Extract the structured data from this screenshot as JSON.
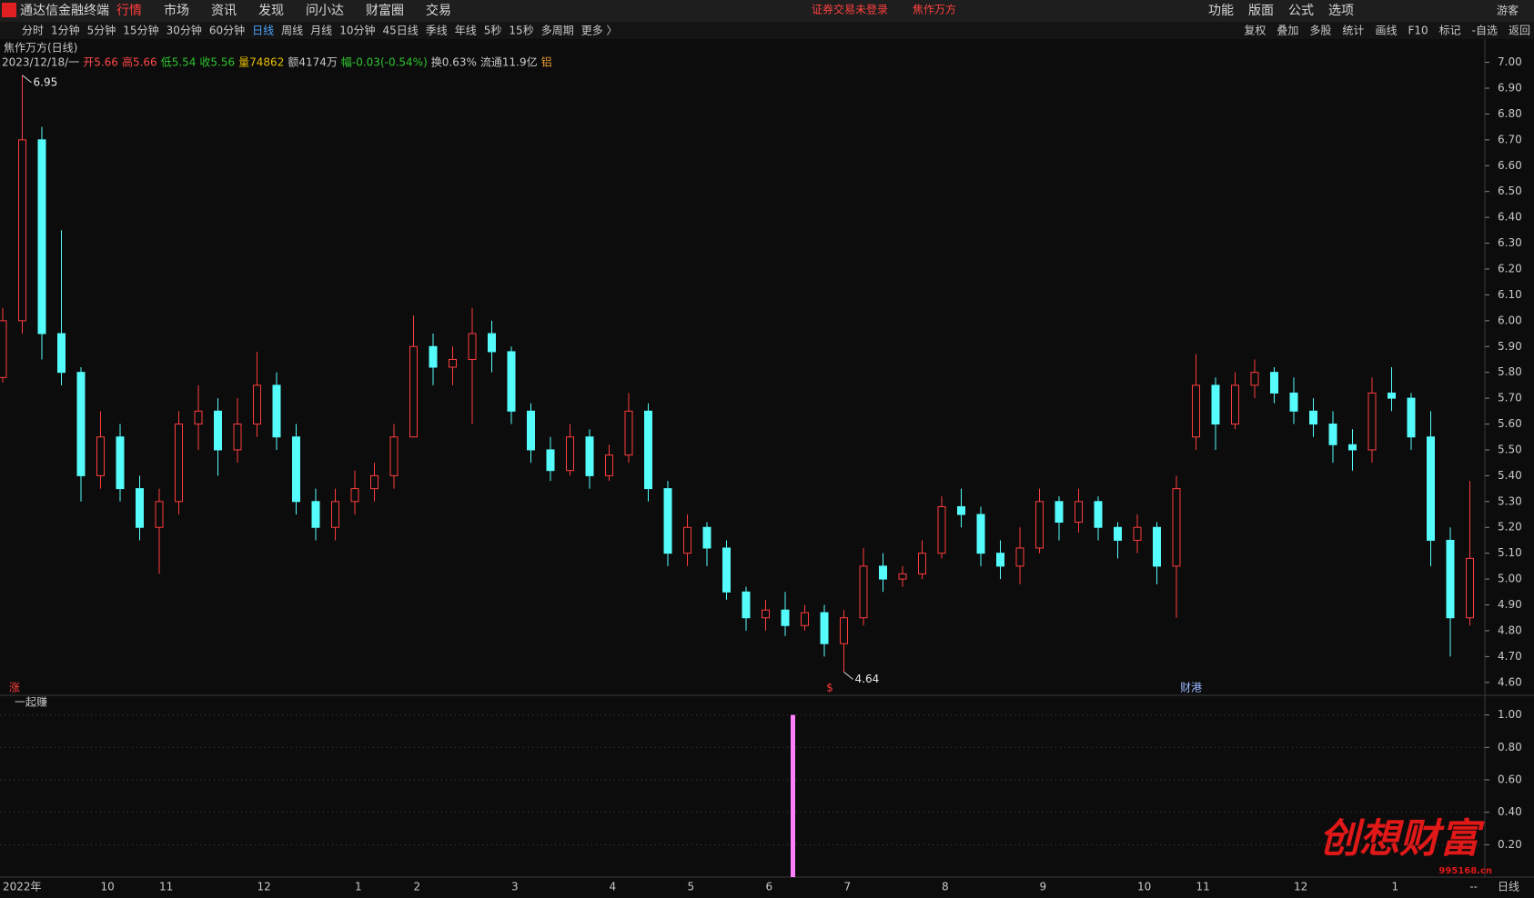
{
  "app": {
    "name": "通达信金融终端",
    "tabs": [
      "行情",
      "市场",
      "资讯",
      "发现",
      "问小达",
      "财富圈",
      "交易"
    ],
    "notice": "证券交易未登录",
    "stock": "焦作万方",
    "right_menu": [
      "功能",
      "版面",
      "公式",
      "选项"
    ],
    "user": "游客"
  },
  "toolbar": {
    "periods": [
      "分时",
      "1分钟",
      "5分钟",
      "15分钟",
      "30分钟",
      "60分钟",
      "日线",
      "周线",
      "月线",
      "10分钟",
      "45日线",
      "季线",
      "年线",
      "5秒",
      "15秒",
      "多周期",
      "更多 〉"
    ],
    "selected": "日线",
    "tools": [
      "复权",
      "叠加",
      "多股",
      "统计",
      "画线",
      "F10",
      "标记",
      "-自选",
      "返回"
    ]
  },
  "header": {
    "title": "焦作万方(日线)",
    "info": [
      "2023/12/18/一",
      "开5.66",
      "高5.66",
      "低5.54",
      "收5.56",
      "量74862",
      "额4174万",
      "幅-0.03(-0.54%)",
      "换0.63%",
      "流通11.9亿",
      "铝"
    ]
  },
  "markers": [
    "涨",
    "$",
    "财港"
  ],
  "footer": {
    "period": "日线",
    "dash": "--"
  },
  "watermark": {
    "text": "创想财富",
    "site": "995168.cn"
  },
  "chart_data": [
    {
      "type": "candlestick",
      "up_color": "#ff3c3c",
      "down_color": "#54fcfc",
      "categories": [
        "2022年",
        null,
        null,
        null,
        null,
        "10",
        null,
        null,
        "11",
        null,
        null,
        null,
        null,
        "12",
        null,
        null,
        null,
        null,
        "1",
        null,
        null,
        "2",
        null,
        null,
        null,
        null,
        "3",
        null,
        null,
        null,
        null,
        "4",
        null,
        null,
        null,
        "5",
        null,
        null,
        null,
        "6",
        null,
        null,
        null,
        "7",
        null,
        null,
        null,
        null,
        "8",
        null,
        null,
        null,
        null,
        "9",
        null,
        null,
        null,
        null,
        "10",
        null,
        null,
        "11",
        null,
        null,
        null,
        null,
        "12",
        null,
        null,
        null,
        null,
        "1",
        null,
        null,
        null,
        null
      ],
      "open": [
        5.78,
        6.0,
        6.7,
        5.95,
        5.8,
        5.4,
        5.55,
        5.35,
        5.2,
        5.3,
        5.6,
        5.65,
        5.5,
        5.6,
        5.75,
        5.55,
        5.3,
        5.2,
        5.3,
        5.35,
        5.4,
        5.55,
        5.9,
        5.82,
        5.85,
        5.95,
        5.88,
        5.65,
        5.5,
        5.42,
        5.55,
        5.4,
        5.48,
        5.65,
        5.35,
        5.1,
        5.2,
        5.12,
        4.95,
        4.85,
        4.88,
        4.82,
        4.87,
        4.75,
        4.85,
        5.05,
        5.0,
        5.02,
        5.1,
        5.28,
        5.25,
        5.1,
        5.05,
        5.12,
        5.3,
        5.22,
        5.3,
        5.2,
        5.15,
        5.2,
        5.05,
        5.55,
        5.75,
        5.6,
        5.75,
        5.8,
        5.72,
        5.65,
        5.6,
        5.52,
        5.5,
        5.72,
        5.7,
        5.55,
        5.15,
        4.85
      ],
      "high": [
        6.05,
        6.95,
        6.75,
        6.35,
        5.82,
        5.65,
        5.6,
        5.4,
        5.35,
        5.65,
        5.75,
        5.7,
        5.7,
        5.88,
        5.8,
        5.6,
        5.35,
        5.35,
        5.42,
        5.45,
        5.6,
        6.02,
        5.95,
        5.9,
        6.05,
        6.0,
        5.9,
        5.68,
        5.55,
        5.6,
        5.58,
        5.52,
        5.72,
        5.68,
        5.38,
        5.25,
        5.22,
        5.15,
        4.97,
        4.92,
        4.95,
        4.9,
        4.9,
        4.88,
        5.12,
        5.1,
        5.05,
        5.15,
        5.32,
        5.35,
        5.28,
        5.15,
        5.2,
        5.35,
        5.32,
        5.35,
        5.32,
        5.22,
        5.25,
        5.22,
        5.4,
        5.87,
        5.78,
        5.8,
        5.85,
        5.82,
        5.78,
        5.7,
        5.65,
        5.58,
        5.78,
        5.82,
        5.72,
        5.65,
        5.2,
        5.38
      ],
      "low": [
        5.76,
        5.95,
        5.85,
        5.75,
        5.3,
        5.35,
        5.3,
        5.15,
        5.02,
        5.25,
        5.5,
        5.4,
        5.45,
        5.55,
        5.5,
        5.25,
        5.15,
        5.15,
        5.25,
        5.3,
        5.35,
        5.55,
        5.75,
        5.75,
        5.6,
        5.8,
        5.6,
        5.45,
        5.38,
        5.4,
        5.35,
        5.38,
        5.45,
        5.3,
        5.05,
        5.05,
        5.05,
        4.92,
        4.8,
        4.8,
        4.78,
        4.8,
        4.7,
        4.64,
        4.82,
        4.95,
        4.97,
        5.0,
        5.08,
        5.2,
        5.05,
        5.0,
        4.98,
        5.1,
        5.15,
        5.18,
        5.15,
        5.08,
        5.1,
        4.98,
        4.85,
        5.5,
        5.5,
        5.58,
        5.7,
        5.68,
        5.6,
        5.55,
        5.45,
        5.42,
        5.45,
        5.65,
        5.5,
        5.05,
        4.7,
        4.82
      ],
      "close": [
        6.0,
        6.7,
        5.95,
        5.8,
        5.4,
        5.55,
        5.35,
        5.2,
        5.3,
        5.6,
        5.65,
        5.5,
        5.6,
        5.75,
        5.55,
        5.3,
        5.2,
        5.3,
        5.35,
        5.4,
        5.55,
        5.9,
        5.82,
        5.85,
        5.95,
        5.88,
        5.65,
        5.5,
        5.42,
        5.55,
        5.4,
        5.48,
        5.65,
        5.35,
        5.1,
        5.2,
        5.12,
        4.95,
        4.85,
        4.88,
        4.82,
        4.87,
        4.75,
        4.85,
        5.05,
        5.0,
        5.02,
        5.1,
        5.28,
        5.25,
        5.1,
        5.05,
        5.12,
        5.3,
        5.22,
        5.3,
        5.2,
        5.15,
        5.2,
        5.05,
        5.35,
        5.75,
        5.6,
        5.75,
        5.8,
        5.72,
        5.65,
        5.6,
        5.52,
        5.5,
        5.72,
        5.7,
        5.55,
        5.15,
        4.85,
        5.08
      ],
      "annotations": [
        6.95,
        4.64
      ],
      "ylim": [
        4.55,
        7.09
      ],
      "yticks": [
        {
          "value": 4.6,
          "label": "4.60"
        },
        {
          "value": 4.7,
          "label": "4.70"
        },
        {
          "value": 4.8,
          "label": "4.80"
        },
        {
          "value": 4.9,
          "label": "4.90"
        },
        {
          "value": 5.0,
          "label": "5.00"
        },
        {
          "value": 5.1,
          "label": "5.10"
        },
        {
          "value": 5.2,
          "label": "5.20"
        },
        {
          "value": 5.3,
          "label": "5.30"
        },
        {
          "value": 5.4,
          "label": "5.40"
        },
        {
          "value": 5.5,
          "label": "5.50"
        },
        {
          "value": 5.6,
          "label": "5.60"
        },
        {
          "value": 5.7,
          "label": "5.70"
        },
        {
          "value": 5.8,
          "label": "5.80"
        },
        {
          "value": 5.9,
          "label": "5.90"
        },
        {
          "value": 6.0,
          "label": "6.00"
        },
        {
          "value": 6.1,
          "label": "6.10"
        },
        {
          "value": 6.2,
          "label": "6.20"
        },
        {
          "value": 6.3,
          "label": "6.30"
        },
        {
          "value": 6.4,
          "label": "6.40"
        },
        {
          "value": 6.5,
          "label": "6.50"
        },
        {
          "value": 6.6,
          "label": "6.60"
        },
        {
          "value": 6.7,
          "label": "6.70"
        },
        {
          "value": 6.8,
          "label": "6.80"
        },
        {
          "value": 6.9,
          "label": "6.90"
        },
        {
          "value": 7.0,
          "label": "7.00"
        }
      ],
      "grid": false
    },
    {
      "type": "bar",
      "title": "一起赚",
      "color": "#ff80ff",
      "values": [
        0,
        0,
        0,
        0,
        0,
        0,
        0,
        0,
        0,
        0,
        0,
        0,
        0,
        0,
        0,
        0,
        0,
        0,
        0,
        0,
        0,
        0,
        0,
        0,
        0,
        0,
        0,
        0,
        0,
        0,
        0,
        0,
        0,
        0,
        0,
        0,
        0,
        0,
        0,
        0,
        1,
        0,
        0,
        0,
        0,
        0,
        0,
        0,
        0,
        0,
        0,
        0,
        0,
        0,
        0,
        0,
        0,
        0,
        0,
        0,
        0,
        0,
        0,
        0,
        0,
        0,
        0,
        0,
        0,
        0,
        0,
        0,
        0,
        0,
        0,
        0
      ],
      "ylim": [
        0,
        1.11
      ],
      "yticks": [
        {
          "value": 0.2,
          "label": "0.20"
        },
        {
          "value": 0.4,
          "label": "0.40"
        },
        {
          "value": 0.6,
          "label": "0.60"
        },
        {
          "value": 0.8,
          "label": "0.80"
        },
        {
          "value": 1.0,
          "label": "1.00"
        }
      ],
      "grid": true
    }
  ]
}
